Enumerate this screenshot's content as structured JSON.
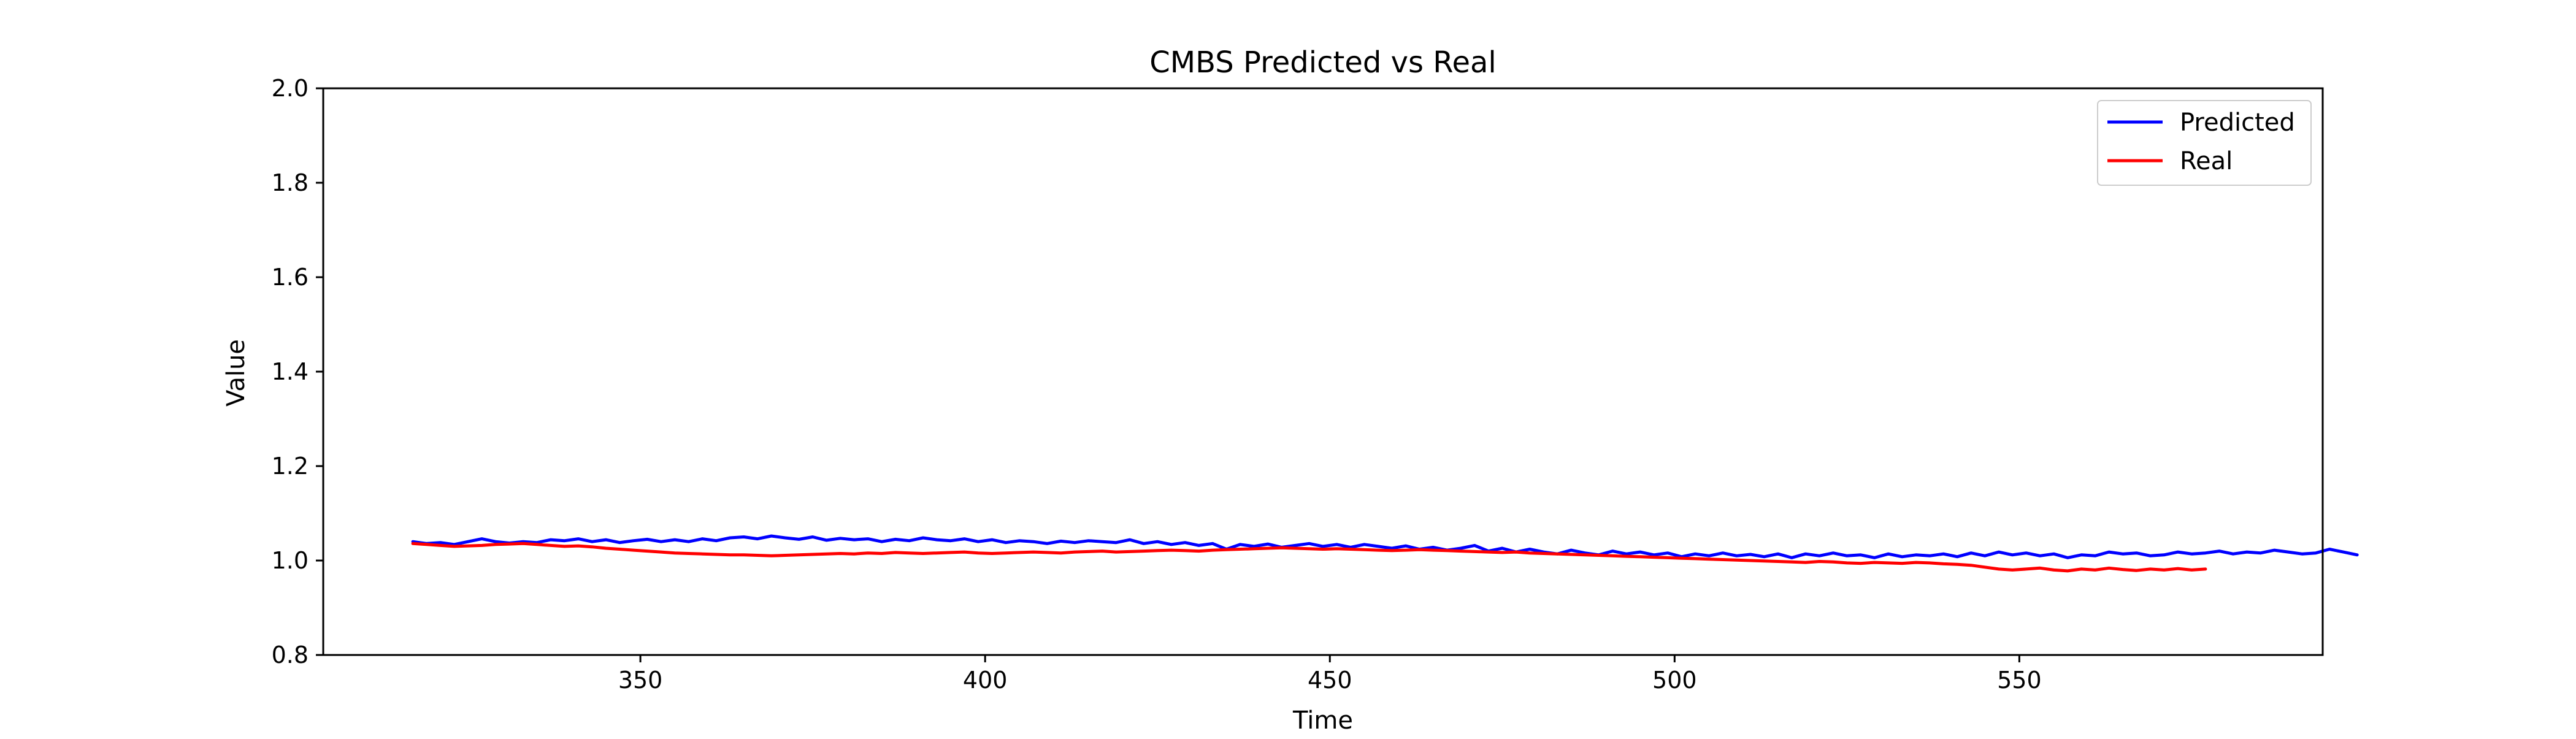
{
  "chart_data": {
    "type": "line",
    "title": "CMBS Predicted vs Real",
    "xlabel": "Time",
    "ylabel": "Value",
    "xlim": [
      304,
      594
    ],
    "ylim": [
      0.8,
      2.0
    ],
    "xticks": [
      350,
      400,
      450,
      500,
      550
    ],
    "yticks": [
      0.8,
      1.0,
      1.2,
      1.4,
      1.6,
      1.8,
      2.0
    ],
    "x_start": 317,
    "x_step": 2,
    "grid": false,
    "legend_position": "top-right",
    "series": [
      {
        "name": "Predicted",
        "color": "#0000ff",
        "values": [
          1.04,
          1.036,
          1.038,
          1.034,
          1.04,
          1.046,
          1.04,
          1.037,
          1.04,
          1.038,
          1.044,
          1.042,
          1.046,
          1.04,
          1.044,
          1.038,
          1.042,
          1.045,
          1.04,
          1.044,
          1.04,
          1.046,
          1.042,
          1.048,
          1.05,
          1.046,
          1.052,
          1.048,
          1.045,
          1.05,
          1.043,
          1.047,
          1.044,
          1.046,
          1.04,
          1.045,
          1.042,
          1.048,
          1.044,
          1.042,
          1.046,
          1.04,
          1.044,
          1.038,
          1.042,
          1.04,
          1.036,
          1.041,
          1.038,
          1.042,
          1.04,
          1.038,
          1.044,
          1.036,
          1.04,
          1.034,
          1.038,
          1.032,
          1.036,
          1.024,
          1.034,
          1.03,
          1.035,
          1.028,
          1.032,
          1.036,
          1.03,
          1.034,
          1.028,
          1.034,
          1.03,
          1.026,
          1.031,
          1.024,
          1.028,
          1.022,
          1.026,
          1.032,
          1.02,
          1.026,
          1.018,
          1.024,
          1.018,
          1.014,
          1.022,
          1.016,
          1.012,
          1.02,
          1.014,
          1.018,
          1.012,
          1.016,
          1.008,
          1.014,
          1.01,
          1.016,
          1.01,
          1.013,
          1.008,
          1.014,
          1.006,
          1.014,
          1.01,
          1.016,
          1.01,
          1.012,
          1.006,
          1.014,
          1.008,
          1.012,
          1.01,
          1.014,
          1.008,
          1.016,
          1.01,
          1.018,
          1.012,
          1.016,
          1.01,
          1.014,
          1.006,
          1.012,
          1.01,
          1.018,
          1.014,
          1.016,
          1.01,
          1.012,
          1.018,
          1.014,
          1.016,
          1.02,
          1.014,
          1.018,
          1.016,
          1.022,
          1.018,
          1.014,
          1.016,
          1.024,
          1.018,
          1.012
        ]
      },
      {
        "name": "Real",
        "color": "#ff0000",
        "values": [
          1.036,
          1.034,
          1.032,
          1.03,
          1.031,
          1.032,
          1.034,
          1.035,
          1.036,
          1.034,
          1.032,
          1.03,
          1.031,
          1.029,
          1.026,
          1.024,
          1.022,
          1.02,
          1.018,
          1.016,
          1.015,
          1.014,
          1.013,
          1.012,
          1.012,
          1.011,
          1.01,
          1.011,
          1.012,
          1.013,
          1.014,
          1.015,
          1.014,
          1.016,
          1.015,
          1.017,
          1.016,
          1.015,
          1.016,
          1.017,
          1.018,
          1.016,
          1.015,
          1.016,
          1.017,
          1.018,
          1.017,
          1.016,
          1.018,
          1.019,
          1.02,
          1.018,
          1.019,
          1.02,
          1.021,
          1.022,
          1.021,
          1.02,
          1.022,
          1.023,
          1.024,
          1.025,
          1.026,
          1.027,
          1.026,
          1.025,
          1.024,
          1.025,
          1.024,
          1.023,
          1.022,
          1.021,
          1.022,
          1.023,
          1.022,
          1.021,
          1.02,
          1.019,
          1.018,
          1.017,
          1.018,
          1.016,
          1.015,
          1.014,
          1.013,
          1.012,
          1.011,
          1.01,
          1.009,
          1.008,
          1.007,
          1.006,
          1.005,
          1.004,
          1.003,
          1.002,
          1.001,
          1.0,
          0.999,
          0.998,
          0.997,
          0.996,
          0.998,
          0.997,
          0.995,
          0.994,
          0.996,
          0.995,
          0.994,
          0.996,
          0.995,
          0.993,
          0.992,
          0.99,
          0.986,
          0.982,
          0.98,
          0.982,
          0.984,
          0.98,
          0.978,
          0.982,
          0.98,
          0.984,
          0.981,
          0.979,
          0.982,
          0.98,
          0.983,
          0.98,
          0.982
        ]
      }
    ]
  }
}
